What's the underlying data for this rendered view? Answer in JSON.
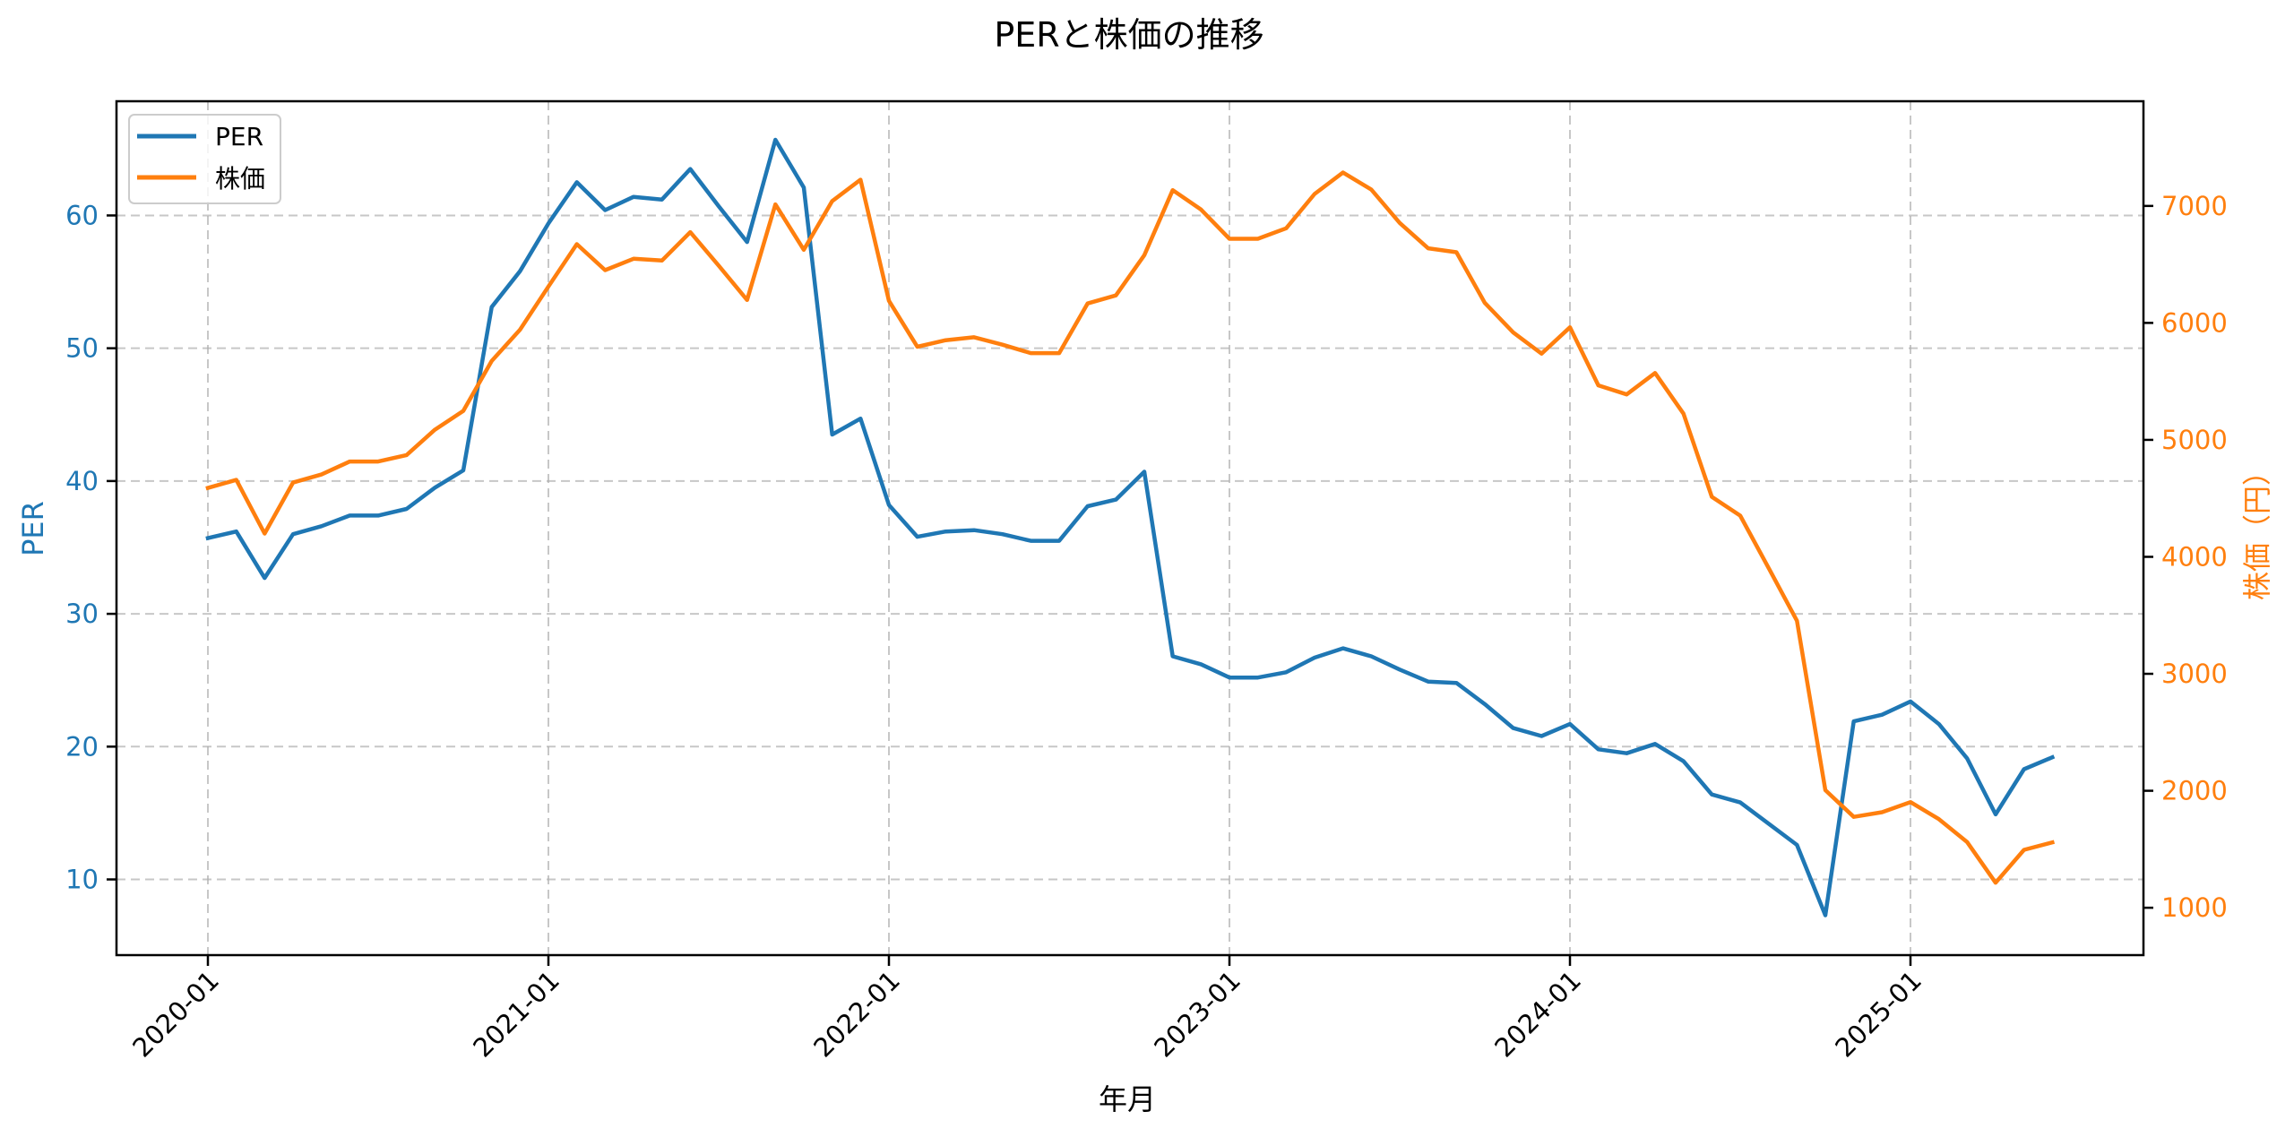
{
  "chart_data": {
    "type": "line",
    "title": "PERと株価の推移",
    "xlabel": "年月",
    "ylabel_left": "PER",
    "ylabel_right": "株価（円）",
    "x_tick_labels": [
      "2020-01",
      "2021-01",
      "2022-01",
      "2023-01",
      "2024-01",
      "2025-01"
    ],
    "y_left_ticks": [
      10,
      20,
      30,
      40,
      50,
      60
    ],
    "y_right_ticks": [
      1000,
      2000,
      3000,
      4000,
      5000,
      6000,
      7000
    ],
    "y_left_range": [
      4.3,
      68.6
    ],
    "y_right_range": [
      595,
      7895
    ],
    "grid": true,
    "legend_position": "upper left",
    "x": [
      "2020-01",
      "2020-02",
      "2020-03",
      "2020-04",
      "2020-05",
      "2020-06",
      "2020-07",
      "2020-08",
      "2020-09",
      "2020-10",
      "2020-11",
      "2020-12",
      "2021-01",
      "2021-02",
      "2021-03",
      "2021-04",
      "2021-05",
      "2021-06",
      "2021-07",
      "2021-08",
      "2021-09",
      "2021-10",
      "2021-11",
      "2021-12",
      "2022-01",
      "2022-02",
      "2022-03",
      "2022-04",
      "2022-05",
      "2022-06",
      "2022-07",
      "2022-08",
      "2022-09",
      "2022-10",
      "2022-11",
      "2022-12",
      "2023-01",
      "2023-02",
      "2023-03",
      "2023-04",
      "2023-05",
      "2023-06",
      "2023-07",
      "2023-08",
      "2023-09",
      "2023-10",
      "2023-11",
      "2023-12",
      "2024-01",
      "2024-02",
      "2024-03",
      "2024-04",
      "2024-05",
      "2024-06",
      "2024-07",
      "2024-08",
      "2024-09",
      "2024-10",
      "2024-11",
      "2024-12",
      "2025-01",
      "2025-02",
      "2025-03",
      "2025-04",
      "2025-05",
      "2025-06"
    ],
    "series": [
      {
        "name": "PER",
        "axis": "left",
        "color": "#1f77b4",
        "values": [
          35.7,
          36.2,
          32.7,
          36.0,
          36.6,
          37.4,
          37.4,
          37.9,
          39.5,
          40.8,
          53.1,
          55.8,
          59.4,
          62.5,
          60.4,
          61.4,
          61.2,
          63.5,
          60.7,
          58.0,
          65.7,
          62.1,
          43.5,
          44.7,
          38.2,
          35.8,
          36.2,
          36.3,
          36.0,
          35.5,
          35.5,
          38.1,
          38.6,
          40.7,
          26.8,
          26.2,
          25.2,
          25.2,
          25.6,
          26.7,
          27.4,
          26.8,
          25.8,
          24.9,
          24.8,
          23.2,
          21.4,
          20.8,
          21.7,
          19.8,
          19.5,
          20.2,
          18.9,
          16.4,
          15.8,
          14.2,
          12.6,
          7.3,
          21.9,
          22.4,
          23.4,
          21.7,
          19.1,
          14.9,
          18.3,
          19.2
        ]
      },
      {
        "name": "株価",
        "axis": "right",
        "color": "#ff7f0e",
        "values": [
          4589,
          4658,
          4199,
          4635,
          4704,
          4815,
          4815,
          4870,
          5087,
          5248,
          5674,
          5942,
          6311,
          6673,
          6451,
          6548,
          6533,
          6776,
          6490,
          6196,
          7013,
          6625,
          7042,
          7224,
          6189,
          5796,
          5852,
          5877,
          5814,
          5742,
          5742,
          6166,
          6235,
          6579,
          7135,
          6969,
          6719,
          6719,
          6809,
          7102,
          7285,
          7140,
          6855,
          6638,
          6604,
          6171,
          5918,
          5737,
          5962,
          5466,
          5389,
          5572,
          5224,
          4513,
          4352,
          3905,
          3454,
          2005,
          1777,
          1817,
          1903,
          1758,
          1561,
          1214,
          1495,
          1559
        ]
      }
    ]
  },
  "legend": {
    "items": [
      {
        "label": "PER",
        "color": "#1f77b4"
      },
      {
        "label": "株価",
        "color": "#ff7f0e"
      }
    ]
  },
  "colors": {
    "per": "#1f77b4",
    "price": "#ff7f0e",
    "grid": "#b0b0b0",
    "axis": "#000000"
  }
}
